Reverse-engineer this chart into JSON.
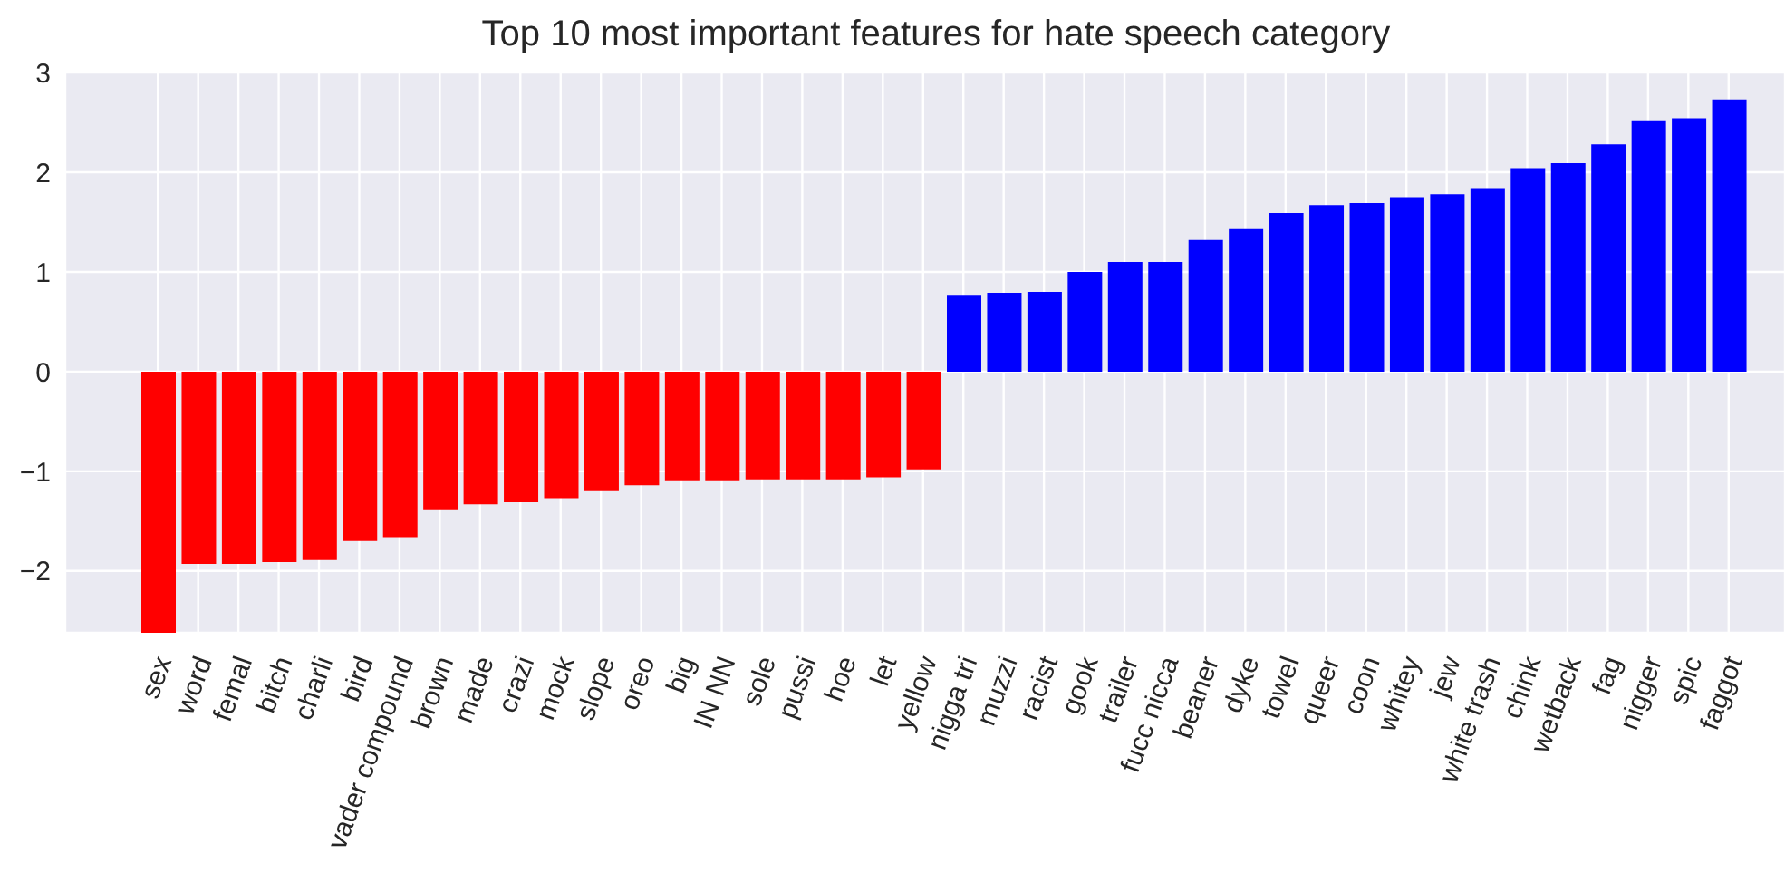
{
  "chart_data": {
    "type": "bar",
    "title": "Top 10 most important features for hate speech category",
    "categories": [
      "sex",
      "word",
      "femal",
      "bitch",
      "charli",
      "bird",
      "vader compound",
      "brown",
      "made",
      "crazi",
      "mock",
      "slope",
      "oreo",
      "big",
      "IN NN",
      "sole",
      "pussi",
      "hoe",
      "let",
      "yellow",
      "nigga tri",
      "muzzi",
      "racist",
      "gook",
      "trailer",
      "fucc nicca",
      "beaner",
      "dyke",
      "towel",
      "queer",
      "coon",
      "whitey",
      "jew",
      "white trash",
      "chink",
      "wetback",
      "fag",
      "nigger",
      "spic",
      "faggot"
    ],
    "values": [
      -2.62,
      -1.93,
      -1.93,
      -1.91,
      -1.89,
      -1.7,
      -1.66,
      -1.39,
      -1.33,
      -1.31,
      -1.27,
      -1.2,
      -1.14,
      -1.1,
      -1.1,
      -1.08,
      -1.08,
      -1.08,
      -1.06,
      -0.98,
      0.77,
      0.79,
      0.8,
      1.0,
      1.1,
      1.1,
      1.32,
      1.43,
      1.59,
      1.67,
      1.69,
      1.75,
      1.78,
      1.84,
      2.04,
      2.09,
      2.28,
      2.52,
      2.54,
      2.73
    ],
    "colors": [
      "#ff0000",
      "#ff0000",
      "#ff0000",
      "#ff0000",
      "#ff0000",
      "#ff0000",
      "#ff0000",
      "#ff0000",
      "#ff0000",
      "#ff0000",
      "#ff0000",
      "#ff0000",
      "#ff0000",
      "#ff0000",
      "#ff0000",
      "#ff0000",
      "#ff0000",
      "#ff0000",
      "#ff0000",
      "#ff0000",
      "#0000ff",
      "#0000ff",
      "#0000ff",
      "#0000ff",
      "#0000ff",
      "#0000ff",
      "#0000ff",
      "#0000ff",
      "#0000ff",
      "#0000ff",
      "#0000ff",
      "#0000ff",
      "#0000ff",
      "#0000ff",
      "#0000ff",
      "#0000ff",
      "#0000ff",
      "#0000ff",
      "#0000ff",
      "#0000ff"
    ],
    "ylim": [
      -2.62,
      3
    ],
    "yticks": [
      -2,
      -1,
      0,
      1,
      2,
      3
    ],
    "grid": true,
    "legend": false
  }
}
